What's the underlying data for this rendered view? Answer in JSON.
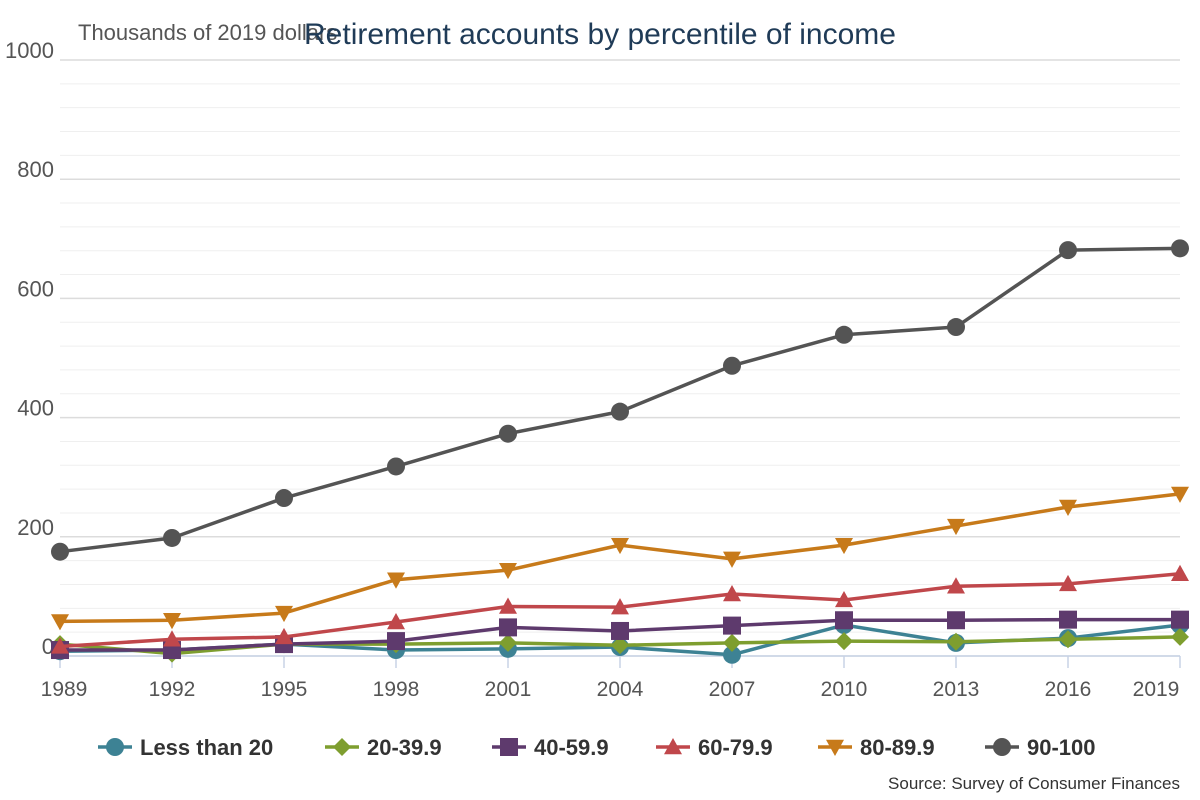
{
  "chart_data": {
    "type": "line",
    "title": "Retirement accounts by percentile of income",
    "ylabel": "Thousands of 2019 dollars",
    "xlabel": "",
    "source": "Source: Survey of Consumer Finances",
    "ylim": [
      0,
      1000
    ],
    "yticks": [
      0,
      200,
      400,
      600,
      800,
      1000
    ],
    "x": [
      "1989",
      "1992",
      "1995",
      "1998",
      "2001",
      "2004",
      "2007",
      "2010",
      "2013",
      "2016",
      "2019"
    ],
    "legend_position": "bottom",
    "grid": true,
    "series": [
      {
        "name": "Less than 20",
        "color": "#3d8294",
        "marker": "circle",
        "values": [
          8,
          10,
          20,
          10,
          12,
          15,
          2,
          52,
          22,
          30,
          52
        ]
      },
      {
        "name": "20-39.9",
        "color": "#7e9e2f",
        "marker": "diamond",
        "values": [
          20,
          4,
          20,
          20,
          22,
          18,
          22,
          25,
          24,
          28,
          32
        ]
      },
      {
        "name": "40-59.9",
        "color": "#5e3a6d",
        "marker": "square",
        "values": [
          10,
          10,
          20,
          25,
          48,
          42,
          51,
          60,
          60,
          61,
          61
        ]
      },
      {
        "name": "60-79.9",
        "color": "#c0474b",
        "marker": "triangle-up",
        "values": [
          16,
          28,
          32,
          57,
          83,
          82,
          104,
          94,
          117,
          121,
          138
        ]
      },
      {
        "name": "80-89.9",
        "color": "#c77a1a",
        "marker": "triangle-down",
        "values": [
          58,
          60,
          72,
          128,
          144,
          186,
          163,
          186,
          218,
          250,
          272
        ]
      },
      {
        "name": "90-100",
        "color": "#545454",
        "marker": "circle",
        "values": [
          175,
          198,
          265,
          318,
          373,
          410,
          487,
          539,
          552,
          681,
          684
        ]
      }
    ]
  }
}
